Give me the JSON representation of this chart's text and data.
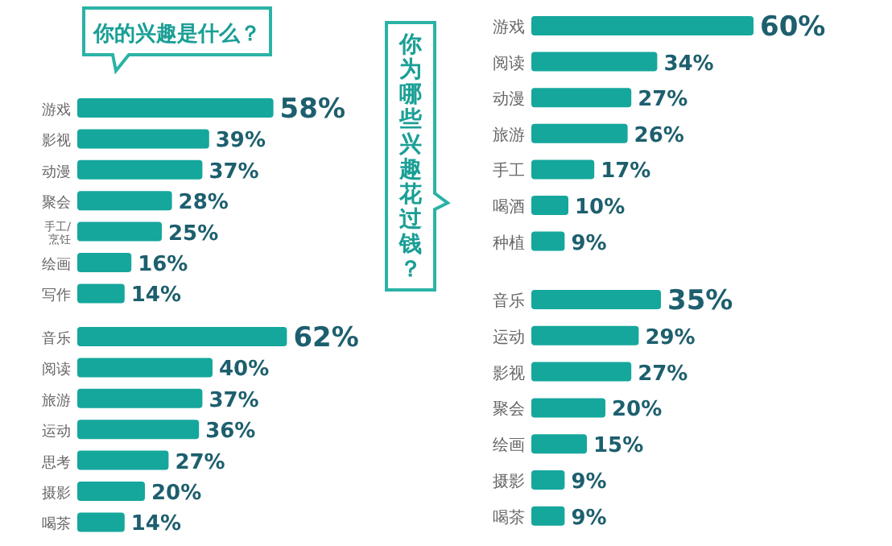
{
  "chart_data": [
    {
      "type": "bar",
      "orientation": "horizontal",
      "title": "你的兴趣是什么？",
      "categories": [
        "游戏",
        "影视",
        "动漫",
        "聚会",
        "手工/烹饪",
        "绘画",
        "写作"
      ],
      "values": [
        58,
        39,
        37,
        28,
        25,
        16,
        14
      ],
      "value_labels": [
        "58%",
        "39%",
        "37%",
        "28%",
        "25%",
        "16%",
        "14%"
      ],
      "color": "#15a79c"
    },
    {
      "type": "bar",
      "orientation": "horizontal",
      "categories": [
        "音乐",
        "阅读",
        "旅游",
        "运动",
        "思考",
        "摄影",
        "喝茶"
      ],
      "values": [
        62,
        40,
        37,
        36,
        27,
        20,
        14
      ],
      "value_labels": [
        "62%",
        "40%",
        "37%",
        "36%",
        "27%",
        "20%",
        "14%"
      ],
      "color": "#15a79c"
    },
    {
      "type": "bar",
      "orientation": "horizontal",
      "title": "你为哪些兴趣花过钱？",
      "categories": [
        "游戏",
        "阅读",
        "动漫",
        "旅游",
        "手工",
        "喝酒",
        "种植"
      ],
      "values": [
        60,
        34,
        27,
        26,
        17,
        10,
        9
      ],
      "value_labels": [
        "60%",
        "34%",
        "27%",
        "26%",
        "17%",
        "10%",
        "9%"
      ],
      "color": "#15a79c"
    },
    {
      "type": "bar",
      "orientation": "horizontal",
      "categories": [
        "音乐",
        "运动",
        "影视",
        "聚会",
        "绘画",
        "摄影",
        "喝茶"
      ],
      "values": [
        35,
        29,
        27,
        20,
        15,
        9,
        9
      ],
      "value_labels": [
        "35%",
        "29%",
        "27%",
        "20%",
        "15%",
        "9%",
        "9%"
      ],
      "color": "#15a79c"
    }
  ]
}
